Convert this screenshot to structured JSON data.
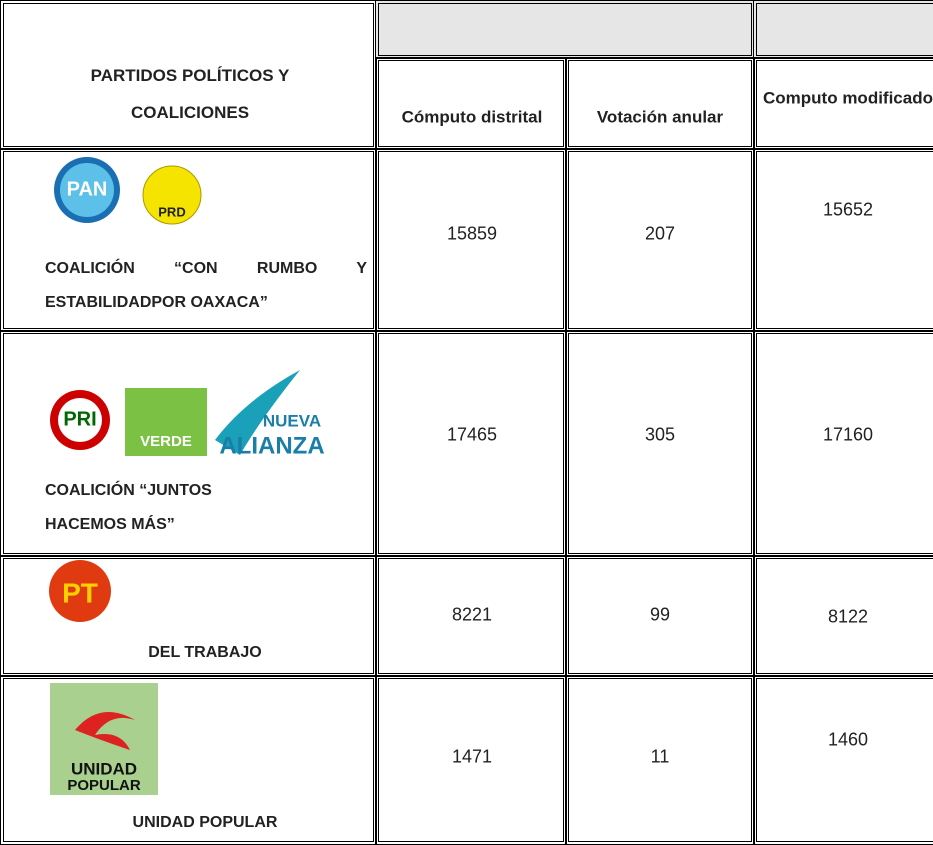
{
  "header": {
    "title": "PARTIDOS POLÍTICOS Y COALICIONES",
    "columns": [
      "Cómputo distrital",
      "Votación anular",
      "Computo modificado"
    ]
  },
  "rows": [
    {
      "logos": [
        "PAN",
        "PRD"
      ],
      "name": "COALICIÓN “CON RUMBO Y ESTABILIDADPOR OAXACA”",
      "values": [
        15859,
        207,
        15652
      ]
    },
    {
      "logos": [
        "PRI",
        "VERDE",
        "NUEVA",
        "ALIANZA"
      ],
      "name": "COALICIÓN “JUNTOS HACEMOS MÁS”",
      "values": [
        17465,
        305,
        17160
      ]
    },
    {
      "logos": [
        "PT"
      ],
      "name": "DEL TRABAJO",
      "values": [
        8221,
        99,
        8122
      ]
    },
    {
      "logos": [
        "UNIDAD",
        "POPULAR"
      ],
      "name": "UNIDAD POPULAR",
      "values": [
        1471,
        11,
        1460
      ]
    }
  ]
}
